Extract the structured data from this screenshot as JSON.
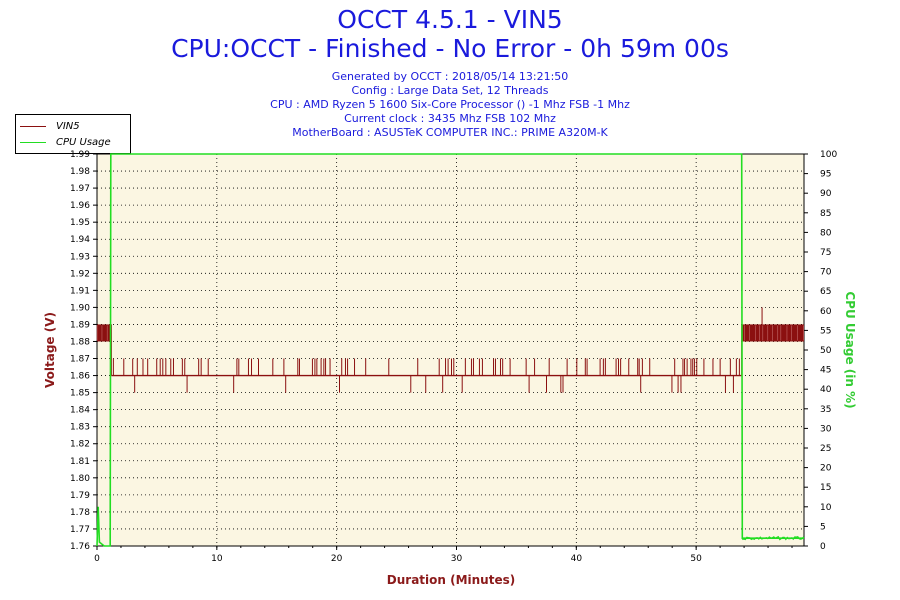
{
  "header": {
    "title": "OCCT 4.5.1 - VIN5",
    "subtitle": "CPU:OCCT - Finished - No Error - 0h 59m 00s",
    "lines": [
      "Generated by OCCT : 2018/05/14 13:21:50",
      "Config : Large Data Set, 12 Threads",
      "CPU : AMD Ryzen 5 1600 Six-Core Processor () -1 Mhz FSB -1 Mhz",
      "Current clock : 3435 Mhz FSB 102 Mhz",
      "MotherBoard : ASUSTeK COMPUTER INC.: PRIME A320M-K"
    ]
  },
  "colors": {
    "vin5": "#8b1010",
    "cpu": "#22dd22",
    "plot_bg": "#fbf6e2",
    "grid": "#000000",
    "ylabel": "#8b1a1a",
    "y2label": "#33cc33",
    "xlabel": "#8b1a1a"
  },
  "chart_data": {
    "type": "line",
    "title": "OCCT 4.5.1 - VIN5",
    "xlabel": "Duration (Minutes)",
    "ylabel": "Voltage (V)",
    "y2label": "CPU Usage (in %)",
    "xlim": [
      0,
      59
    ],
    "ylim": [
      1.76,
      1.99
    ],
    "y2lim": [
      0,
      100
    ],
    "x_ticks": [
      0,
      10,
      20,
      30,
      40,
      50
    ],
    "y_ticks": [
      1.76,
      1.77,
      1.78,
      1.79,
      1.8,
      1.81,
      1.82,
      1.83,
      1.84,
      1.85,
      1.86,
      1.87,
      1.88,
      1.89,
      1.9,
      1.91,
      1.92,
      1.93,
      1.94,
      1.95,
      1.96,
      1.97,
      1.98,
      1.99
    ],
    "y2_ticks": [
      0,
      5,
      10,
      15,
      20,
      25,
      30,
      35,
      40,
      45,
      50,
      55,
      60,
      65,
      70,
      75,
      80,
      85,
      90,
      95,
      100
    ],
    "grid": true,
    "legend_position": "top-left",
    "series": [
      {
        "name": "VIN5",
        "axis": "left",
        "baseline": 1.86,
        "flicker_up": 1.87,
        "flicker_down": 1.85,
        "segments": [
          {
            "x_start": 0.0,
            "x_end": 1.2,
            "low": 1.88,
            "high": 1.89
          },
          {
            "x_start": 1.2,
            "x_end": 53.8,
            "low": 1.86,
            "high": 1.86
          },
          {
            "x_start": 53.8,
            "x_end": 59.0,
            "low": 1.88,
            "high": 1.89
          }
        ],
        "spike": {
          "x": 55.5,
          "value": 1.9
        }
      },
      {
        "name": "CPU Usage",
        "axis": "right",
        "points": [
          [
            0,
            0
          ],
          [
            0.1,
            10
          ],
          [
            0.2,
            1
          ],
          [
            0.6,
            0
          ],
          [
            1.1,
            0
          ],
          [
            1.15,
            100
          ],
          [
            53.8,
            100
          ],
          [
            53.85,
            2
          ],
          [
            54.5,
            2
          ],
          [
            56,
            2
          ],
          [
            57,
            2
          ],
          [
            58,
            2
          ],
          [
            59,
            2
          ]
        ]
      }
    ]
  }
}
